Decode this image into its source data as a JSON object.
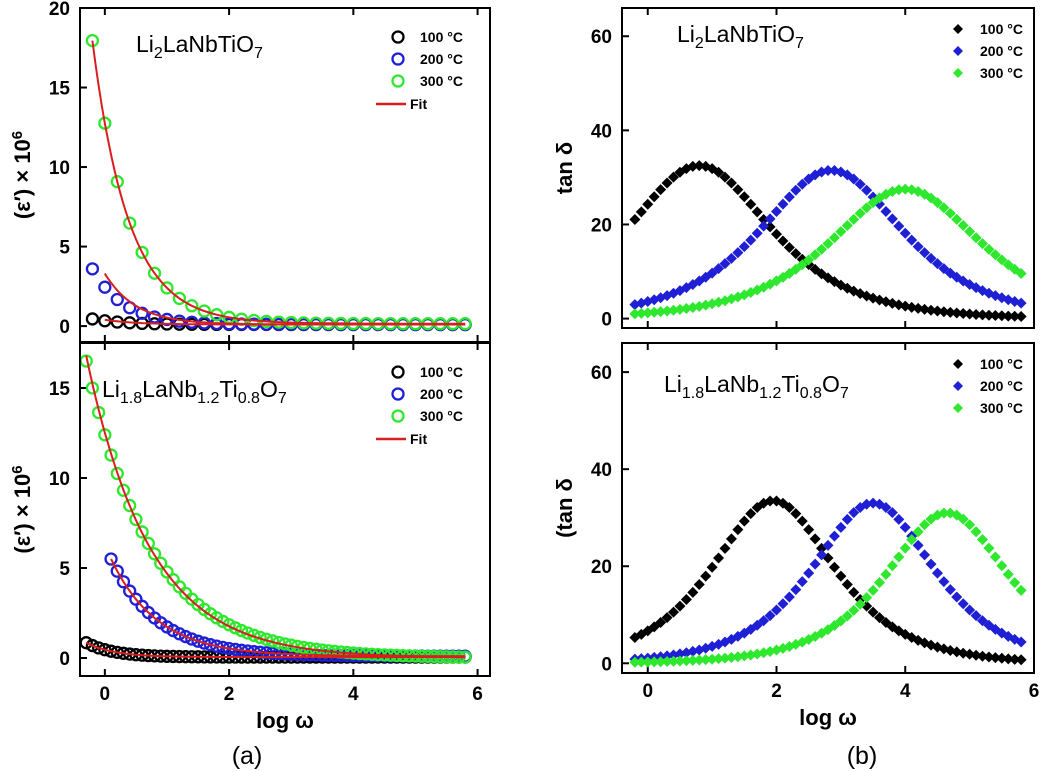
{
  "panel_labels": {
    "a": "(a)",
    "b": "(b)"
  },
  "colors": {
    "c100": "#000000",
    "c200": "#1f1fd6",
    "c300": "#2ee82e",
    "fit": "#d91e1e"
  },
  "chart_data": [
    {
      "id": "a-top",
      "type": "scatter",
      "title_parts": [
        [
          "Li",
          false
        ],
        [
          "2",
          true
        ],
        [
          "LaNbTiO",
          false
        ],
        [
          "7",
          true
        ]
      ],
      "xlabel": "",
      "ylabel_parts": [
        [
          "(ε′) × 10",
          false
        ],
        [
          "6",
          "sup"
        ]
      ],
      "xlim": [
        -0.4,
        6.2
      ],
      "ylim": [
        -1,
        20
      ],
      "xticks": [
        0,
        2,
        4,
        6
      ],
      "yticks": [
        0,
        5,
        10,
        15,
        20
      ],
      "show_xticklabels": false,
      "marker": "circle",
      "legend": [
        "100 °C",
        "200 °C",
        "300 °C",
        "Fit"
      ],
      "series": [
        {
          "name": "100 °C",
          "x_start": -0.2,
          "x_end": 5.8,
          "step": 0.2,
          "amp": 0.35,
          "tau": 0.5,
          "base": 0.1
        },
        {
          "name": "200 °C",
          "x_start": -0.2,
          "x_end": 5.8,
          "step": 0.2,
          "amp": 3.5,
          "tau": 0.5,
          "base": 0.1
        },
        {
          "name": "300 °C",
          "x_start": -0.2,
          "x_end": 5.8,
          "step": 0.2,
          "amp": 17.8,
          "tau": 0.58,
          "base": 0.15
        }
      ],
      "fit": [
        {
          "x_start": -0.2,
          "x_end": 5.8,
          "amp": 17.8,
          "tau": 0.58,
          "base": 0.15
        },
        {
          "x_start": 0.0,
          "x_end": 5.8,
          "amp": 3.2,
          "tau": 0.5,
          "base": 0.1
        },
        {
          "x_start": 0.0,
          "x_end": 5.8,
          "amp": 0.3,
          "tau": 0.5,
          "base": 0.1
        }
      ]
    },
    {
      "id": "a-bottom",
      "type": "scatter",
      "title_parts": [
        [
          "Li",
          false
        ],
        [
          "1.8",
          true
        ],
        [
          "LaNb",
          false
        ],
        [
          "1.2",
          true
        ],
        [
          "Ti",
          false
        ],
        [
          "0.8",
          true
        ],
        [
          "O",
          false
        ],
        [
          "7",
          true
        ]
      ],
      "xlabel": "log ω",
      "ylabel_parts": [
        [
          "(ε′) × 10",
          false
        ],
        [
          "6",
          "sup"
        ]
      ],
      "xlim": [
        -0.4,
        6.2
      ],
      "ylim": [
        -1,
        17.5
      ],
      "xticks": [
        0,
        2,
        4,
        6
      ],
      "yticks": [
        0,
        5,
        10,
        15
      ],
      "show_xticklabels": true,
      "marker": "circle",
      "legend": [
        "100 °C",
        "200 °C",
        "300 °C",
        "Fit"
      ],
      "series": [
        {
          "name": "100 °C",
          "x_start": -0.3,
          "x_end": 5.8,
          "step": 0.1,
          "amp": 0.8,
          "tau": 0.45,
          "base": 0.05
        },
        {
          "name": "200 °C",
          "x_start": 0.1,
          "x_end": 5.8,
          "step": 0.1,
          "amp": 5.4,
          "tau": 0.75,
          "base": 0.1
        },
        {
          "name": "300 °C",
          "x_start": -0.3,
          "x_end": 5.8,
          "step": 0.1,
          "amp": 16.5,
          "tau": 1.05,
          "base": 0.0
        }
      ],
      "fit": [
        {
          "x_start": -0.3,
          "x_end": 5.8,
          "amp": 16.8,
          "tau": 1.02,
          "base": 0.0
        },
        {
          "x_start": 0.1,
          "x_end": 5.8,
          "amp": 5.4,
          "tau": 0.75,
          "base": 0.1
        },
        {
          "x_start": -0.3,
          "x_end": 5.8,
          "amp": 0.8,
          "tau": 0.45,
          "base": 0.05
        }
      ]
    },
    {
      "id": "b-top",
      "type": "scatter",
      "title_parts": [
        [
          "Li",
          false
        ],
        [
          "2",
          true
        ],
        [
          "LaNbTiO",
          false
        ],
        [
          "7",
          true
        ]
      ],
      "xlabel": "",
      "ylabel_parts": [
        [
          "tan δ",
          false
        ]
      ],
      "xlim": [
        -0.4,
        6.0
      ],
      "ylim": [
        -2,
        66
      ],
      "xticks": [
        0,
        2,
        4,
        6
      ],
      "yticks": [
        0,
        20,
        40,
        60
      ],
      "show_xticklabels": false,
      "marker": "diamond",
      "legend": [
        "100 °C",
        "200 °C",
        "300 °C"
      ],
      "series": [
        {
          "name": "100 °C",
          "x_start": -0.2,
          "x_end": 5.8,
          "step": 0.1,
          "peak_x": 0.8,
          "peak_y": 32.5,
          "width": 1.0
        },
        {
          "name": "200 °C",
          "x_start": -0.2,
          "x_end": 5.8,
          "step": 0.1,
          "peak_x": 2.85,
          "peak_y": 31.5,
          "width": 1.0
        },
        {
          "name": "300 °C",
          "x_start": -0.2,
          "x_end": 5.8,
          "step": 0.1,
          "peak_x": 4.0,
          "peak_y": 27.5,
          "width": 1.05
        }
      ]
    },
    {
      "id": "b-bottom",
      "type": "scatter",
      "title_parts": [
        [
          "Li",
          false
        ],
        [
          "1.8",
          true
        ],
        [
          "LaNb",
          false
        ],
        [
          "1.2",
          true
        ],
        [
          "Ti",
          false
        ],
        [
          "0.8",
          true
        ],
        [
          "O",
          false
        ],
        [
          "7",
          true
        ]
      ],
      "xlabel": "log ω",
      "ylabel_parts": [
        [
          "(tan δ",
          false
        ]
      ],
      "xlim": [
        -0.4,
        6.0
      ],
      "ylim": [
        -2,
        66
      ],
      "xticks": [
        0,
        2,
        4,
        6
      ],
      "yticks": [
        0,
        20,
        40,
        60
      ],
      "show_xticklabels": true,
      "marker": "diamond",
      "legend": [
        "100 °C",
        "200 °C",
        "300 °C"
      ],
      "series": [
        {
          "name": "100 °C",
          "x_start": -0.2,
          "x_end": 5.8,
          "step": 0.1,
          "peak_x": 1.95,
          "peak_y": 33.5,
          "width": 0.85
        },
        {
          "name": "200 °C",
          "x_start": -0.2,
          "x_end": 5.8,
          "step": 0.1,
          "peak_x": 3.5,
          "peak_y": 33.0,
          "width": 0.85
        },
        {
          "name": "300 °C",
          "x_start": -0.2,
          "x_end": 5.8,
          "step": 0.1,
          "peak_x": 4.65,
          "peak_y": 31.0,
          "width": 0.85
        }
      ]
    }
  ]
}
